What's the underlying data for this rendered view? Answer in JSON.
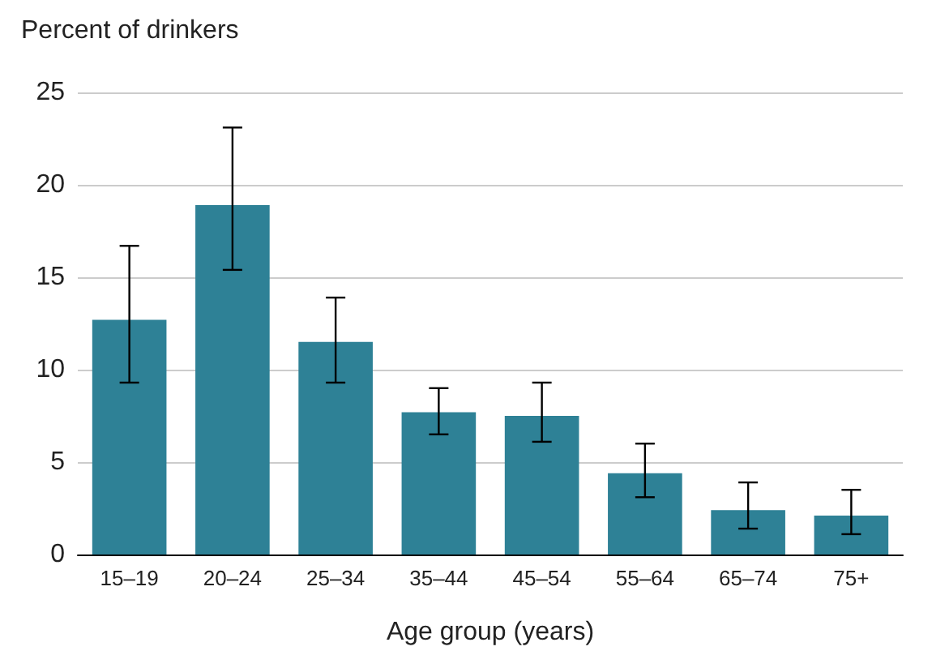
{
  "chart_data": {
    "type": "bar",
    "title": "Percent of drinkers",
    "xlabel": "Age group (years)",
    "categories": [
      "15–19",
      "20–24",
      "25–34",
      "35–44",
      "45–54",
      "55–64",
      "65–74",
      "75+"
    ],
    "values": [
      12.7,
      18.9,
      11.5,
      7.7,
      7.5,
      4.4,
      2.4,
      2.1
    ],
    "errors": [
      [
        9.3,
        16.7
      ],
      [
        15.4,
        23.1
      ],
      [
        9.3,
        13.9
      ],
      [
        6.5,
        9.0
      ],
      [
        6.1,
        9.3
      ],
      [
        3.1,
        6.0
      ],
      [
        1.4,
        3.9
      ],
      [
        1.1,
        3.5
      ]
    ],
    "color": "#2e8196",
    "ylim": [
      0,
      25
    ],
    "yticks": [
      0,
      5,
      10,
      15,
      20,
      25
    ],
    "grid": "y"
  }
}
